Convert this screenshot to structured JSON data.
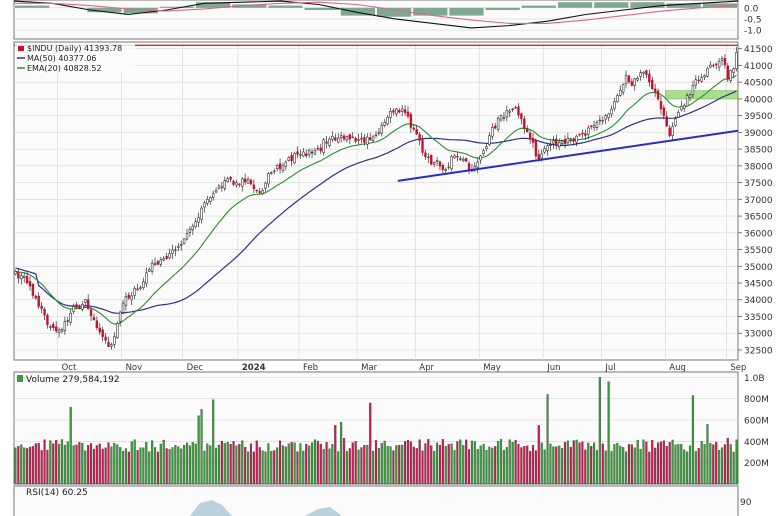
{
  "chart_data": [
    {
      "type": "line",
      "panel": "macd-top",
      "ytick_labels": [
        "0.0",
        "-0.5",
        "-1.0"
      ],
      "y_ticks": [
        0.0,
        -0.5,
        -1.0
      ],
      "ylim": [
        -1.4,
        0.35
      ],
      "grid": true,
      "series": [
        {
          "values": [
            0.3,
            0.2,
            -0.1,
            -0.3,
            -0.1,
            0.2,
            0.25,
            0.3,
            0.15,
            -0.2,
            -0.5,
            -0.7,
            -0.9,
            -0.8,
            -0.6,
            -0.3,
            -0.1,
            0.1,
            0.2,
            0.3
          ]
        },
        {
          "values": [
            0.2,
            0.2,
            0.1,
            -0.05,
            -0.15,
            -0.05,
            0.1,
            0.2,
            0.25,
            0.15,
            -0.1,
            -0.35,
            -0.55,
            -0.7,
            -0.7,
            -0.55,
            -0.35,
            -0.15,
            0.0,
            0.1
          ]
        }
      ],
      "histogram": [
        0.1,
        0.0,
        -0.2,
        -0.25,
        0.05,
        0.25,
        0.15,
        0.1,
        -0.1,
        -0.35,
        -0.4,
        -0.35,
        -0.35,
        -0.1,
        0.1,
        0.25,
        0.25,
        0.25,
        0.2,
        0.2
      ]
    },
    {
      "type": "line",
      "panel": "price",
      "legend": {
        "symbol": "$INDU (Daily) 41393.78",
        "ma": "MA(50) 40377.06",
        "ema": "EMA(20) 40828.52"
      },
      "legend_placement": "top-left",
      "ylim": [
        32200,
        41700
      ],
      "grid": true,
      "y_ticks": [
        32500,
        33000,
        33500,
        34000,
        34500,
        35000,
        35500,
        36000,
        36500,
        37000,
        37500,
        38000,
        38500,
        39000,
        39500,
        40000,
        40500,
        41000,
        41500
      ],
      "x_tick_labels": [
        {
          "label": "Oct",
          "day": 15
        },
        {
          "label": "Nov",
          "day": 37
        },
        {
          "label": "Dec",
          "day": 58
        },
        {
          "label": "2024",
          "day": 77,
          "bold": true
        },
        {
          "label": "Feb",
          "day": 98
        },
        {
          "label": "Mar",
          "day": 118
        },
        {
          "label": "Apr",
          "day": 138
        },
        {
          "label": "May",
          "day": 160
        },
        {
          "label": "Jun",
          "day": 182
        },
        {
          "label": "Jul",
          "day": 202
        },
        {
          "label": "Aug",
          "day": 224
        },
        {
          "label": "Sep",
          "day": 245
        }
      ],
      "n_days": 249,
      "close_anchors": [
        [
          0,
          34850
        ],
        [
          4,
          34500
        ],
        [
          8,
          33800
        ],
        [
          12,
          33200
        ],
        [
          15,
          33100
        ],
        [
          19,
          33600
        ],
        [
          24,
          34000
        ],
        [
          27,
          33400
        ],
        [
          30,
          32900
        ],
        [
          32,
          32600
        ],
        [
          34,
          32900
        ],
        [
          37,
          33900
        ],
        [
          42,
          34300
        ],
        [
          46,
          34900
        ],
        [
          50,
          35200
        ],
        [
          56,
          35600
        ],
        [
          61,
          36200
        ],
        [
          66,
          37000
        ],
        [
          70,
          37400
        ],
        [
          74,
          37600
        ],
        [
          77,
          37450
        ],
        [
          80,
          37600
        ],
        [
          84,
          37200
        ],
        [
          88,
          37800
        ],
        [
          94,
          38250
        ],
        [
          100,
          38300
        ],
        [
          104,
          38500
        ],
        [
          108,
          38800
        ],
        [
          112,
          38900
        ],
        [
          116,
          38850
        ],
        [
          120,
          38700
        ],
        [
          124,
          38900
        ],
        [
          127,
          39300
        ],
        [
          130,
          39600
        ],
        [
          133,
          39700
        ],
        [
          137,
          39100
        ],
        [
          140,
          38400
        ],
        [
          144,
          38100
        ],
        [
          148,
          37900
        ],
        [
          151,
          38300
        ],
        [
          154,
          38200
        ],
        [
          157,
          37900
        ],
        [
          160,
          38300
        ],
        [
          163,
          38900
        ],
        [
          167,
          39500
        ],
        [
          171,
          39700
        ],
        [
          174,
          39400
        ],
        [
          177,
          38800
        ],
        [
          180,
          38200
        ],
        [
          183,
          38600
        ],
        [
          187,
          38700
        ],
        [
          191,
          38800
        ],
        [
          195,
          38950
        ],
        [
          199,
          39200
        ],
        [
          203,
          39500
        ],
        [
          207,
          40100
        ],
        [
          210,
          40700
        ],
        [
          212,
          40400
        ],
        [
          216,
          40800
        ],
        [
          219,
          40300
        ],
        [
          221,
          40000
        ],
        [
          223,
          39500
        ],
        [
          225,
          38900
        ],
        [
          227,
          39400
        ],
        [
          230,
          39800
        ],
        [
          233,
          40400
        ],
        [
          237,
          40700
        ],
        [
          240,
          41000
        ],
        [
          243,
          41200
        ],
        [
          245,
          40600
        ],
        [
          247,
          40900
        ],
        [
          248,
          41393
        ]
      ],
      "volume_spikes": [
        [
          19,
          720
        ],
        [
          63,
          640
        ],
        [
          64,
          700
        ],
        [
          68,
          790
        ],
        [
          98,
          380
        ],
        [
          110,
          550
        ],
        [
          112,
          580
        ],
        [
          113,
          430
        ],
        [
          122,
          760
        ],
        [
          142,
          420
        ],
        [
          147,
          420
        ],
        [
          180,
          550
        ],
        [
          183,
          840
        ],
        [
          201,
          1000
        ],
        [
          204,
          960
        ],
        [
          233,
          830
        ],
        [
          238,
          560
        ],
        [
          245,
          430
        ]
      ],
      "annotations": [
        {
          "type": "hline",
          "y": 41600,
          "color": "#e0281e"
        },
        {
          "type": "trendline",
          "from": [
            132,
            37550
          ],
          "to": [
            249,
            39050
          ],
          "color": "#2b2bc8"
        },
        {
          "type": "box",
          "from": [
            224,
            40000
          ],
          "to": [
            249,
            40250
          ],
          "color": "#8fd36a"
        }
      ]
    },
    {
      "type": "bar",
      "panel": "volume",
      "legend": {
        "label": "Volume 279,584,192"
      },
      "ylim": [
        0,
        1050000000
      ],
      "y_ticks": [
        200000000,
        400000000,
        600000000,
        800000000,
        1000000000
      ],
      "ytick_labels": [
        "200M",
        "400M",
        "600M",
        "800M",
        "1.0B"
      ],
      "grid": true
    },
    {
      "type": "line",
      "panel": "rsi",
      "legend": {
        "label": "RSI(14) 60.25"
      },
      "y_ticks": [
        90
      ],
      "ytick_labels": [
        "90"
      ]
    }
  ],
  "colors": {
    "up": "#2a7a2a",
    "down": "#c8102e",
    "candle_wick": "#111111",
    "ma50": "#30308a",
    "ema20": "#2e8b2e",
    "vol_up": "#3b9a3b",
    "vol_down": "#c41f52",
    "grid": "#d6d6d6",
    "panel_bg": "#fbfbfb",
    "macd_fill": "#7fa88e",
    "macd_line1": "#111111",
    "macd_line2": "#d86a8a"
  }
}
